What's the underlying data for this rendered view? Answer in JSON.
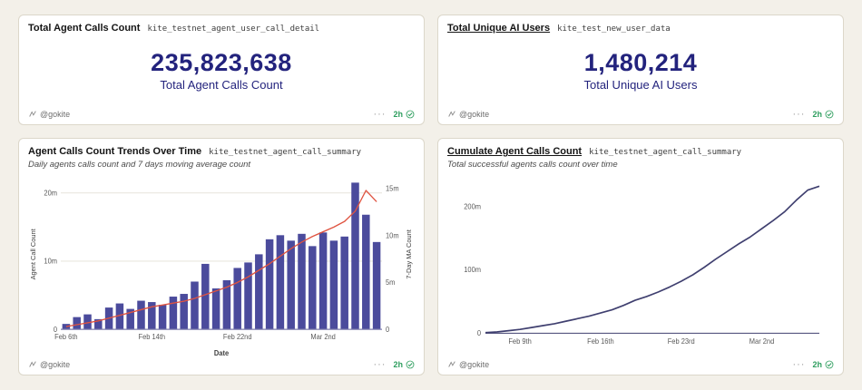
{
  "colors": {
    "accent_number": "#23237d",
    "bar": "#4b4b9c",
    "ma_line": "#df5340",
    "cum_line": "#3f3f6f",
    "green": "#2f9e5f",
    "axis_text": "#595959",
    "grid": "#e9e7df",
    "baseline": "#7d7cab"
  },
  "panels": [
    {
      "title": "Total Agent Calls Count",
      "dataset": "kite_testnet_agent_user_call_detail",
      "value_display": "235,823,638",
      "value_label": "Total Agent Calls Count",
      "author": "@gokite",
      "menu": "···",
      "age": "2h"
    },
    {
      "title": "Total Unique AI Users",
      "dataset": "kite_test_new_user_data",
      "value_display": "1,480,214",
      "value_label": "Total Unique AI Users",
      "author": "@gokite",
      "menu": "···",
      "age": "2h"
    },
    {
      "title": "Agent Calls Count Trends Over Time",
      "dataset": "kite_testnet_agent_call_summary",
      "subtitle": "Daily agents calls count and 7 days moving average count",
      "author": "@gokite",
      "menu": "···",
      "age": "2h"
    },
    {
      "title": "Cumulate Agent Calls Count",
      "dataset": "kite_testnet_agent_call_summary",
      "subtitle": "Total successful agents calls count over time",
      "author": "@gokite",
      "menu": "···",
      "age": "2h"
    }
  ],
  "chart_data": [
    {
      "panel": "total-agent-calls",
      "type": "counter",
      "value": 235823638,
      "display": "235,823,638",
      "label": "Total Agent Calls Count"
    },
    {
      "panel": "total-unique-ai-users",
      "type": "counter",
      "value": 1480214,
      "display": "1,480,214",
      "label": "Total Unique AI Users"
    },
    {
      "panel": "agent-calls-trends",
      "type": "bar",
      "title": "Agent Calls Count Trends Over Time",
      "subtitle": "Daily agents calls count and 7 days moving average count",
      "xlabel": "Date",
      "ylabel_left": "Agent Call Count",
      "ylabel_right": "7-Day MA Count",
      "x": [
        "Feb 6",
        "Feb 7",
        "Feb 8",
        "Feb 9",
        "Feb 10",
        "Feb 11",
        "Feb 12",
        "Feb 13",
        "Feb 14",
        "Feb 15",
        "Feb 16",
        "Feb 17",
        "Feb 18",
        "Feb 19",
        "Feb 20",
        "Feb 21",
        "Feb 22",
        "Feb 23",
        "Feb 24",
        "Feb 25",
        "Feb 26",
        "Feb 27",
        "Feb 28",
        "Mar 1",
        "Mar 2",
        "Mar 3",
        "Mar 4",
        "Mar 5",
        "Mar 6",
        "Mar 7"
      ],
      "bar_values_m": [
        0.8,
        1.8,
        2.2,
        1.5,
        3.2,
        3.8,
        3.0,
        4.2,
        4.0,
        3.6,
        4.8,
        5.2,
        7.0,
        9.6,
        6.0,
        7.2,
        9.0,
        9.8,
        11.0,
        13.2,
        13.8,
        13.0,
        14.0,
        12.2,
        14.2,
        13.0,
        13.6,
        21.5,
        16.8,
        12.8
      ],
      "ma_values_m": [
        0.3,
        0.5,
        0.7,
        0.9,
        1.2,
        1.5,
        1.8,
        2.1,
        2.4,
        2.6,
        2.8,
        3.0,
        3.3,
        3.7,
        4.1,
        4.5,
        5.0,
        5.6,
        6.3,
        7.0,
        7.8,
        8.6,
        9.3,
        9.9,
        10.4,
        10.9,
        11.5,
        12.6,
        14.8,
        13.6
      ],
      "ylim_left_m": [
        0,
        22
      ],
      "yticks_left_m": [
        0,
        10,
        20
      ],
      "yticks_left_labels": [
        "0",
        "10m",
        "20m"
      ],
      "ylim_right_m": [
        0,
        16
      ],
      "yticks_right_m": [
        0,
        5,
        10,
        15
      ],
      "yticks_right_labels": [
        "0",
        "5m",
        "10m",
        "15m"
      ],
      "x_tick_indices": [
        0,
        8,
        16,
        24
      ],
      "x_tick_labels": [
        "Feb 6th",
        "Feb 14th",
        "Feb 22nd",
        "Mar 2nd"
      ],
      "bar_color": "#4b4b9c",
      "line_color": "#df5340",
      "grid_on": true
    },
    {
      "panel": "cumulative-agent-calls",
      "type": "line",
      "title": "Cumulate Agent Calls Count",
      "subtitle": "Total successful agents calls count over time",
      "x": [
        "Feb 6",
        "Feb 7",
        "Feb 8",
        "Feb 9",
        "Feb 10",
        "Feb 11",
        "Feb 12",
        "Feb 13",
        "Feb 14",
        "Feb 15",
        "Feb 16",
        "Feb 17",
        "Feb 18",
        "Feb 19",
        "Feb 20",
        "Feb 21",
        "Feb 22",
        "Feb 23",
        "Feb 24",
        "Feb 25",
        "Feb 26",
        "Feb 27",
        "Feb 28",
        "Mar 1",
        "Mar 2",
        "Mar 3",
        "Mar 4",
        "Mar 5",
        "Mar 6",
        "Mar 7"
      ],
      "values_m": [
        1,
        2,
        4,
        6,
        9,
        12,
        15,
        19,
        23,
        27,
        32,
        37,
        44,
        52,
        58,
        65,
        73,
        82,
        92,
        104,
        117,
        129,
        141,
        152,
        165,
        178,
        192,
        210,
        226,
        232
      ],
      "ylim_m": [
        0,
        240
      ],
      "yticks_m": [
        0,
        100,
        200
      ],
      "ytick_labels": [
        "0",
        "100m",
        "200m"
      ],
      "x_tick_indices": [
        3,
        10,
        17,
        24
      ],
      "x_tick_labels": [
        "Feb 9th",
        "Feb 16th",
        "Feb 23rd",
        "Mar 2nd"
      ],
      "line_color": "#3f3f6f",
      "grid_on": false
    }
  ]
}
